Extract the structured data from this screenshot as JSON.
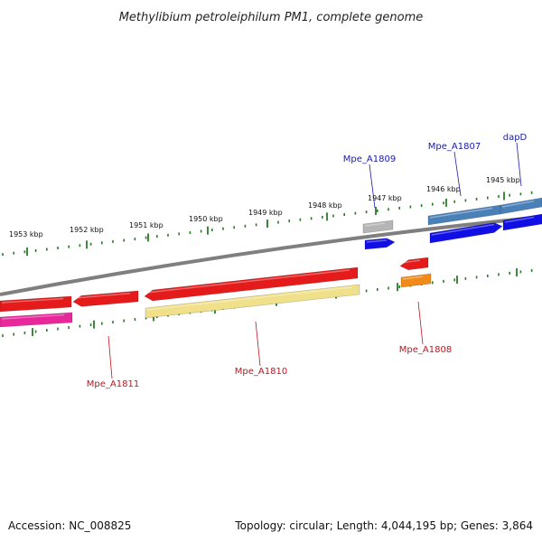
{
  "title": "Methylibium petroleiphilum PM1, complete genome",
  "footer": {
    "accession": "Accession: NC_008825",
    "summary": "Topology: circular; Length: 4,044,195 bp; Genes: 3,864"
  },
  "colors": {
    "backbone": "#7f7f7f",
    "tick": "#2a7a2a",
    "top_label": "#1a1aa8",
    "bottom_label": "#c0141c",
    "red": "#e51a1a",
    "blue": "#1010e6",
    "steel_blue": "#4a80b8",
    "gray": "#b5b5b5",
    "orange": "#f08a1a",
    "pink": "#e8289a",
    "khaki": "#f0e08a"
  },
  "tick_labels": [
    "1953 kbp",
    "1952 kbp",
    "1951 kbp",
    "1950 kbp",
    "1949 kbp",
    "1948 kbp",
    "1947 kbp",
    "1946 kbp",
    "1945 kbp"
  ],
  "gene_labels_top": [
    "Mpe_A1809",
    "Mpe_A1807",
    "dapD"
  ],
  "gene_labels_bottom": [
    "Mpe_A1811",
    "Mpe_A1810",
    "Mpe_A1808"
  ]
}
